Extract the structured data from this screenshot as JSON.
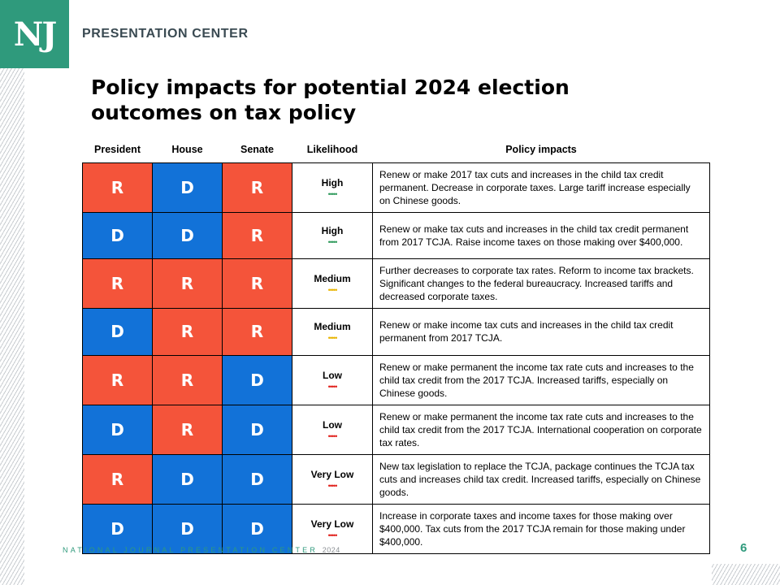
{
  "header": {
    "logo_text": "NJ",
    "label": "PRESENTATION CENTER"
  },
  "title": "Policy impacts for potential 2024 election outcomes on tax policy",
  "table": {
    "headers": [
      "President",
      "House",
      "Senate",
      "Likelihood",
      "Policy impacts"
    ],
    "rows": [
      {
        "president": "R",
        "house": "D",
        "senate": "R",
        "likelihood": "High",
        "dots": "•••••",
        "dot_color": "#2f9a5c",
        "impact": "Renew or make 2017 tax cuts and increases in the child tax credit permanent. Decrease in corporate taxes. Large tariff increase especially on Chinese goods."
      },
      {
        "president": "D",
        "house": "D",
        "senate": "R",
        "likelihood": "High",
        "dots": "•••••",
        "dot_color": "#2f9a5c",
        "impact": "Renew or make tax cuts and increases in the child tax credit permanent from 2017 TCJA. Raise income taxes on those making over $400,000."
      },
      {
        "president": "R",
        "house": "R",
        "senate": "R",
        "likelihood": "Medium",
        "dots": "•••••",
        "dot_color": "#e8b400",
        "impact": "Further decreases to corporate tax rates. Reform to income tax brackets. Significant changes to the federal bureaucracy. Increased tariffs and decreased corporate taxes."
      },
      {
        "president": "D",
        "house": "R",
        "senate": "R",
        "likelihood": "Medium",
        "dots": "•••••",
        "dot_color": "#e8b400",
        "impact": "Renew or make income tax cuts and increases in the child tax credit permanent from 2017 TCJA."
      },
      {
        "president": "R",
        "house": "R",
        "senate": "D",
        "likelihood": "Low",
        "dots": "•••••",
        "dot_color": "#e0201b",
        "impact": "Renew or make permanent the income tax rate cuts and increases to the child tax credit from the 2017 TCJA. Increased tariffs, especially on Chinese goods."
      },
      {
        "president": "D",
        "house": "R",
        "senate": "D",
        "likelihood": "Low",
        "dots": "•••••",
        "dot_color": "#e0201b",
        "impact": "Renew or make permanent the income tax rate cuts and increases to the child tax credit from the 2017 TCJA. International cooperation on corporate tax rates."
      },
      {
        "president": "R",
        "house": "D",
        "senate": "D",
        "likelihood": "Very Low",
        "dots": "•••••",
        "dot_color": "#e0201b",
        "impact": "New tax legislation to replace the TCJA, package continues the TCJA tax cuts and increases child tax credit. Increased tariffs, especially on Chinese goods."
      },
      {
        "president": "D",
        "house": "D",
        "senate": "D",
        "likelihood": "Very Low",
        "dots": "•••••",
        "dot_color": "#e0201b",
        "impact": "Increase in corporate taxes and income taxes for those making over $400,000. Tax cuts from the 2017 TCJA remain for those making under $400,000."
      }
    ]
  },
  "footer": {
    "text": "NATIONAL JOURNAL PRESENTATION CENTER",
    "year": "2024"
  },
  "page_number": "6",
  "colors": {
    "brand_green": "#2f9a7c",
    "republican_red": "#f4543a",
    "democrat_blue": "#1272d8"
  }
}
